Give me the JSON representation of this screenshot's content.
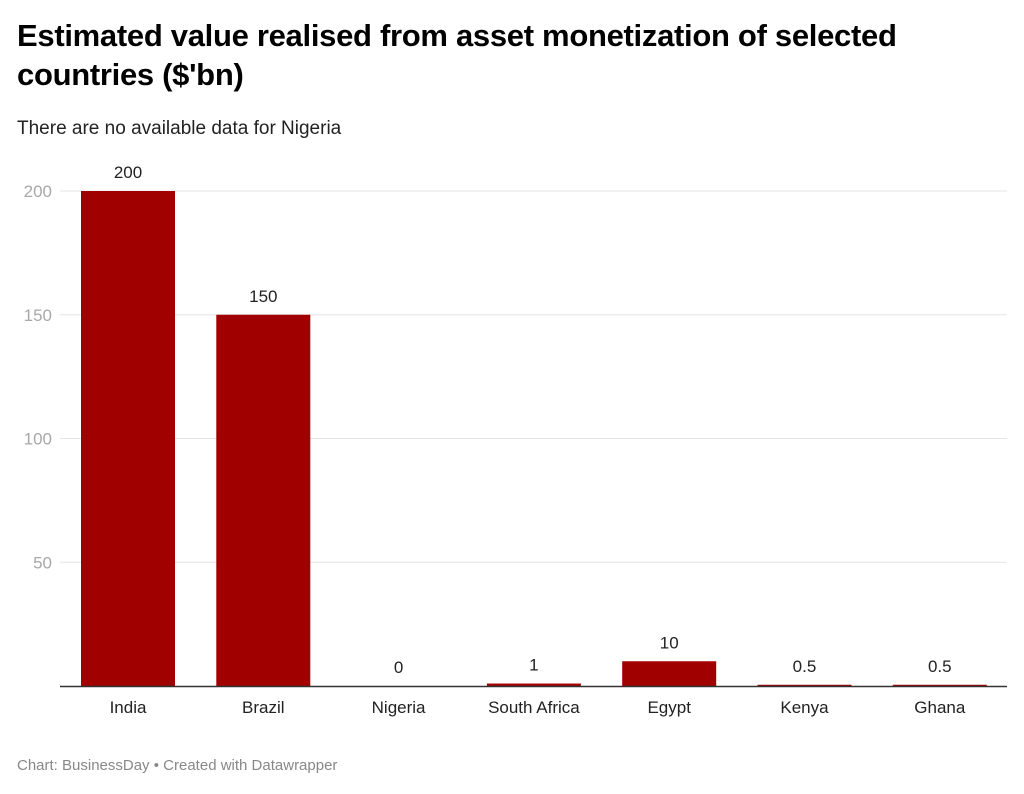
{
  "header": {
    "title": "Estimated value realised from asset monetization of selected countries ($'bn)",
    "subtitle": "There are no available data for Nigeria"
  },
  "footer": {
    "source": "Chart: BusinessDay",
    "separator": "•",
    "credit": "Created with Datawrapper"
  },
  "colors": {
    "bar": "#a10000",
    "grid": "#e5e5e5",
    "axis": "#333333"
  },
  "chart_data": {
    "type": "bar",
    "title": "Estimated value realised from asset monetization of selected countries ($'bn)",
    "subtitle": "There are no available data for Nigeria",
    "xlabel": "",
    "ylabel": "",
    "categories": [
      "India",
      "Brazil",
      "Nigeria",
      "South Africa",
      "Egypt",
      "Kenya",
      "Ghana"
    ],
    "values": [
      200,
      150,
      0,
      1,
      10,
      0.5,
      0.5
    ],
    "value_labels": [
      "200",
      "150",
      "0",
      "1",
      "10",
      "0.5",
      "0.5"
    ],
    "ylim": [
      0,
      200
    ],
    "yticks": [
      50,
      100,
      150,
      200
    ],
    "ytick_labels": [
      "50",
      "100",
      "150",
      "200"
    ],
    "grid": true,
    "legend": "none"
  }
}
